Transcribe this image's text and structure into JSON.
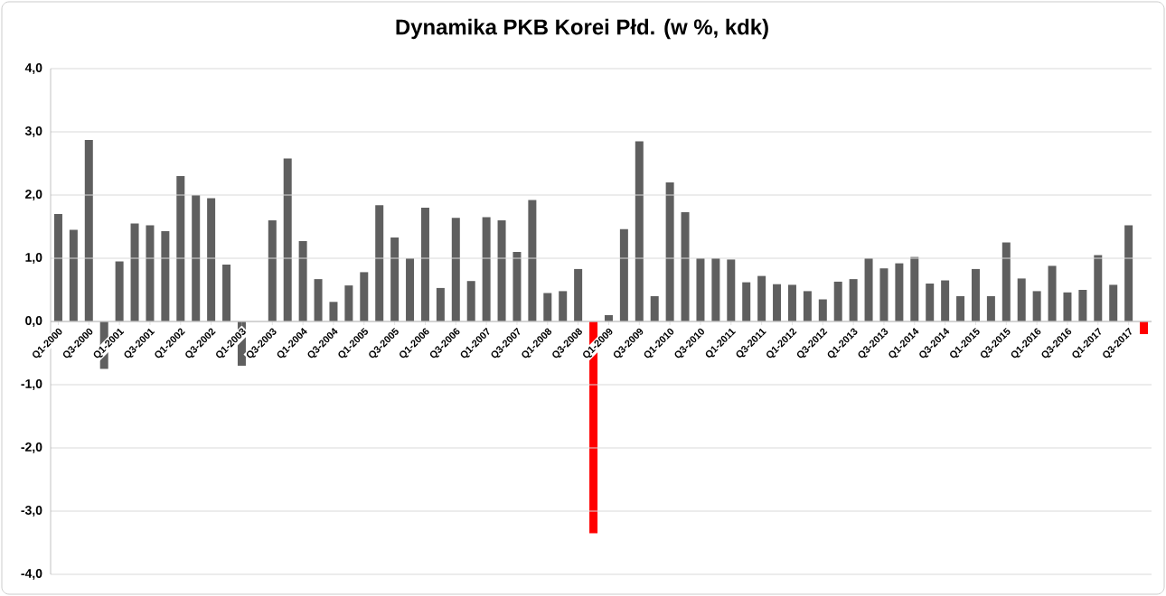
{
  "chart_data": {
    "type": "bar",
    "title": "Dynamika PKB Korei Płd. (w %, kdk)",
    "categories": [
      "Q1-2000",
      null,
      "Q3-2000",
      null,
      "Q1-2001",
      null,
      "Q3-2001",
      null,
      "Q1-2002",
      null,
      "Q3-2002",
      null,
      "Q1-2003",
      null,
      "Q3-2003",
      null,
      "Q1-2004",
      null,
      "Q3-2004",
      null,
      "Q1-2005",
      null,
      "Q3-2005",
      null,
      "Q1-2006",
      null,
      "Q3-2006",
      null,
      "Q1-2007",
      null,
      "Q3-2007",
      null,
      "Q1-2008",
      null,
      "Q3-2008",
      null,
      "Q1-2009",
      null,
      "Q3-2009",
      null,
      "Q1-2010",
      null,
      "Q3-2010",
      null,
      "Q1-2011",
      null,
      "Q3-2011",
      null,
      "Q1-2012",
      null,
      "Q3-2012",
      null,
      "Q1-2013",
      null,
      "Q3-2013",
      null,
      "Q1-2014",
      null,
      "Q3-2014",
      null,
      "Q1-2015",
      null,
      "Q3-2015",
      null,
      "Q1-2016",
      null,
      "Q3-2016",
      null,
      "Q1-2017",
      null,
      "Q3-2017",
      null
    ],
    "values": [
      1.7,
      1.45,
      2.87,
      -0.75,
      0.95,
      1.55,
      1.52,
      1.43,
      2.3,
      2.0,
      1.95,
      0.9,
      -0.7,
      0.0,
      1.6,
      2.58,
      1.27,
      0.67,
      0.31,
      0.57,
      0.78,
      1.84,
      1.33,
      1.0,
      1.8,
      0.53,
      1.64,
      0.64,
      1.65,
      1.6,
      1.1,
      1.92,
      0.45,
      0.48,
      0.83,
      -3.35,
      0.1,
      1.46,
      2.85,
      0.4,
      2.2,
      1.73,
      1.0,
      1.0,
      0.98,
      0.62,
      0.72,
      0.59,
      0.58,
      0.48,
      0.35,
      0.63,
      0.67,
      1.0,
      0.84,
      0.92,
      1.02,
      0.6,
      0.65,
      0.4,
      0.83,
      0.4,
      1.25,
      0.68,
      0.48,
      0.88,
      0.46,
      0.5,
      1.05,
      0.58,
      1.52,
      -0.2
    ],
    "colors": [
      "#5f5f5f",
      "#5f5f5f",
      "#5f5f5f",
      "#5f5f5f",
      "#5f5f5f",
      "#5f5f5f",
      "#5f5f5f",
      "#5f5f5f",
      "#5f5f5f",
      "#5f5f5f",
      "#5f5f5f",
      "#5f5f5f",
      "#5f5f5f",
      "#5f5f5f",
      "#5f5f5f",
      "#5f5f5f",
      "#5f5f5f",
      "#5f5f5f",
      "#5f5f5f",
      "#5f5f5f",
      "#5f5f5f",
      "#5f5f5f",
      "#5f5f5f",
      "#5f5f5f",
      "#5f5f5f",
      "#5f5f5f",
      "#5f5f5f",
      "#5f5f5f",
      "#5f5f5f",
      "#5f5f5f",
      "#5f5f5f",
      "#5f5f5f",
      "#5f5f5f",
      "#5f5f5f",
      "#5f5f5f",
      "#ff0000",
      "#5f5f5f",
      "#5f5f5f",
      "#5f5f5f",
      "#5f5f5f",
      "#5f5f5f",
      "#5f5f5f",
      "#5f5f5f",
      "#5f5f5f",
      "#5f5f5f",
      "#5f5f5f",
      "#5f5f5f",
      "#5f5f5f",
      "#5f5f5f",
      "#5f5f5f",
      "#5f5f5f",
      "#5f5f5f",
      "#5f5f5f",
      "#5f5f5f",
      "#5f5f5f",
      "#5f5f5f",
      "#5f5f5f",
      "#5f5f5f",
      "#5f5f5f",
      "#5f5f5f",
      "#5f5f5f",
      "#5f5f5f",
      "#5f5f5f",
      "#5f5f5f",
      "#5f5f5f",
      "#5f5f5f",
      "#5f5f5f",
      "#5f5f5f",
      "#5f5f5f",
      "#5f5f5f",
      "#5f5f5f",
      "#ff0000"
    ],
    "ylim": [
      -4,
      4
    ],
    "yticks": [
      {
        "value": -4,
        "label": "-4,0"
      },
      {
        "value": -3,
        "label": "-3,0"
      },
      {
        "value": -2,
        "label": "-2,0"
      },
      {
        "value": -1,
        "label": "-1,0"
      },
      {
        "value": 0,
        "label": "0,0"
      },
      {
        "value": 1,
        "label": "1,0"
      },
      {
        "value": 2,
        "label": "2,0"
      },
      {
        "value": 3,
        "label": "3,0"
      },
      {
        "value": 4,
        "label": "4,0"
      }
    ],
    "grid": "y"
  }
}
